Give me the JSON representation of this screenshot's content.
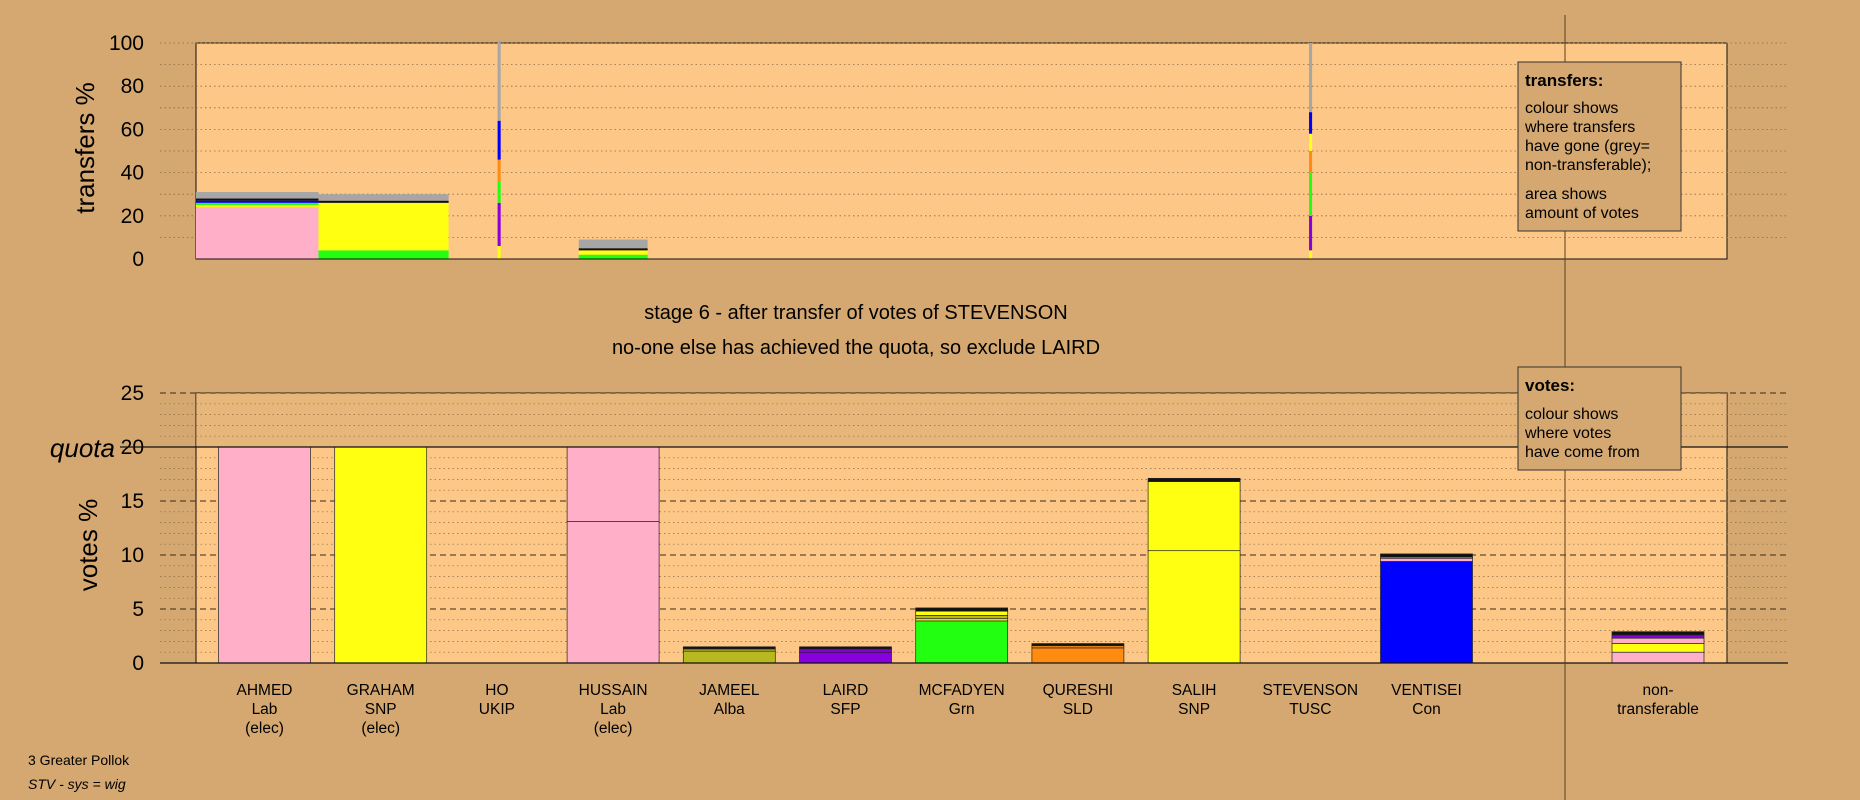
{
  "colors": {
    "page_bg": "#d4a870",
    "plot_bg": "#fdc887",
    "legend_bg": "#d4a870",
    "quota_bg": "#c49a62",
    "gridline": "#8a6a44",
    "Lab": "#ffb0c8",
    "SNP": "#ffff11",
    "UKIP": "#a0a0a0",
    "Alba": "#b8b820",
    "SFP": "#8800dd",
    "Grn": "#22ff11",
    "SLD": "#ff8c11",
    "TUSC": "#ff3333",
    "Con": "#0000ff",
    "non_transferable": "#a6a6a6",
    "black": "#111111"
  },
  "header": {
    "stage_line": "stage 6 - after transfer of votes of STEVENSON",
    "status_line": "no-one else has achieved the quota, so exclude LAIRD"
  },
  "legends": {
    "transfers": {
      "title": "transfers:",
      "lines": [
        "colour shows",
        "where transfers",
        "have gone (grey=",
        "non-transferable);"
      ],
      "lines2": [
        "area shows",
        "amount of votes"
      ]
    },
    "votes": {
      "title": "votes:",
      "lines": [
        "colour shows",
        "where votes",
        "have come from"
      ]
    }
  },
  "footer": {
    "area": "3 Greater Pollok",
    "system": "STV - sys = wig"
  },
  "chart_data": [
    {
      "type": "bar",
      "name": "transfers",
      "ylabel": "transfers %",
      "ylim": [
        0,
        100
      ],
      "yticks": [
        0,
        20,
        40,
        60,
        80,
        100
      ],
      "grid": "dotted every 10",
      "bars": [
        {
          "segments": [
            [
              "Lab",
              24
            ],
            [
              "SNP",
              1
            ],
            [
              "Grn",
              1
            ],
            [
              "Con",
              1
            ],
            [
              "black",
              1
            ],
            [
              "non_transferable",
              3
            ]
          ],
          "x_start": 0,
          "x_end": 8.0
        },
        {
          "segments": [
            [
              "Grn",
              4
            ],
            [
              "SNP",
              22
            ],
            [
              "black",
              1
            ],
            [
              "non_transferable",
              3
            ]
          ],
          "x_start": 8.0,
          "x_end": 16.5
        },
        {
          "segments": [
            [
              "SNP",
              6
            ],
            [
              "SFP",
              20
            ],
            [
              "Grn",
              10
            ],
            [
              "SLD",
              10
            ],
            [
              "Con",
              18
            ],
            [
              "non_transferable",
              37
            ]
          ],
          "x_start": 19.7,
          "x_end": 19.9
        },
        {
          "segments": [
            [
              "Grn",
              2
            ],
            [
              "SNP",
              2
            ],
            [
              "black",
              1
            ],
            [
              "non_transferable",
              4
            ]
          ],
          "x_start": 25.0,
          "x_end": 29.5
        },
        {
          "segments": [
            [
              "SNP",
              4
            ],
            [
              "SFP",
              16
            ],
            [
              "Grn",
              20
            ],
            [
              "SLD",
              10
            ],
            [
              "SNP",
              8
            ],
            [
              "Con",
              10
            ],
            [
              "non_transferable",
              32
            ]
          ],
          "x_start": 72.7,
          "x_end": 72.9
        }
      ]
    },
    {
      "type": "bar",
      "name": "votes",
      "ylabel": "votes %",
      "ylim": [
        0,
        25
      ],
      "yticks": [
        0,
        5,
        10,
        15,
        20,
        25
      ],
      "quota": 20,
      "quota_label": "quota",
      "grid": "dotted every 1, dashed every 5",
      "categories": [
        {
          "name": "AHMED",
          "party": "Lab",
          "note": "(elec)",
          "segments": [
            [
              "Lab",
              20
            ]
          ]
        },
        {
          "name": "GRAHAM",
          "party": "SNP",
          "note": "(elec)",
          "segments": [
            [
              "SNP",
              20
            ]
          ]
        },
        {
          "name": "HO",
          "party": "UKIP",
          "note": "",
          "segments": []
        },
        {
          "name": "HUSSAIN",
          "party": "Lab",
          "note": "(elec)",
          "segments": [
            [
              "Lab",
              13.1
            ],
            [
              "Lab",
              6.9
            ]
          ]
        },
        {
          "name": "JAMEEL",
          "party": "Alba",
          "note": "",
          "segments": [
            [
              "Alba",
              1.1
            ],
            [
              "Alba",
              0.2
            ],
            [
              "black",
              0.2
            ]
          ]
        },
        {
          "name": "LAIRD",
          "party": "SFP",
          "note": "",
          "segments": [
            [
              "SFP",
              1.0
            ],
            [
              "SFP",
              0.3
            ],
            [
              "black",
              0.2
            ]
          ]
        },
        {
          "name": "MCFADYEN",
          "party": "Grn",
          "note": "",
          "segments": [
            [
              "Grn",
              3.9
            ],
            [
              "SNP",
              0.2
            ],
            [
              "Alba",
              0.3
            ],
            [
              "SNP",
              0.4
            ],
            [
              "black",
              0.3
            ]
          ]
        },
        {
          "name": "QURESHI",
          "party": "SLD",
          "note": "",
          "segments": [
            [
              "SLD",
              1.4
            ],
            [
              "SLD",
              0.2
            ],
            [
              "black",
              0.2
            ]
          ]
        },
        {
          "name": "SALIH",
          "party": "SNP",
          "note": "",
          "segments": [
            [
              "SNP",
              10.4
            ],
            [
              "SNP",
              6.4
            ],
            [
              "black",
              0.3
            ]
          ]
        },
        {
          "name": "STEVENSON",
          "party": "TUSC",
          "note": "",
          "segments": []
        },
        {
          "name": "VENTISEI",
          "party": "Con",
          "note": "",
          "segments": [
            [
              "Con",
              9.4
            ],
            [
              "Lab",
              0.3
            ],
            [
              "SNP",
              0.1
            ],
            [
              "black",
              0.3
            ]
          ]
        }
      ],
      "non_transferable": {
        "label1": "non-",
        "label2": "transferable",
        "segments": [
          [
            "Lab",
            1.0
          ],
          [
            "SNP",
            0.8
          ],
          [
            "Lab",
            0.5
          ],
          [
            "SFP",
            0.3
          ],
          [
            "black",
            0.3
          ]
        ]
      }
    }
  ]
}
